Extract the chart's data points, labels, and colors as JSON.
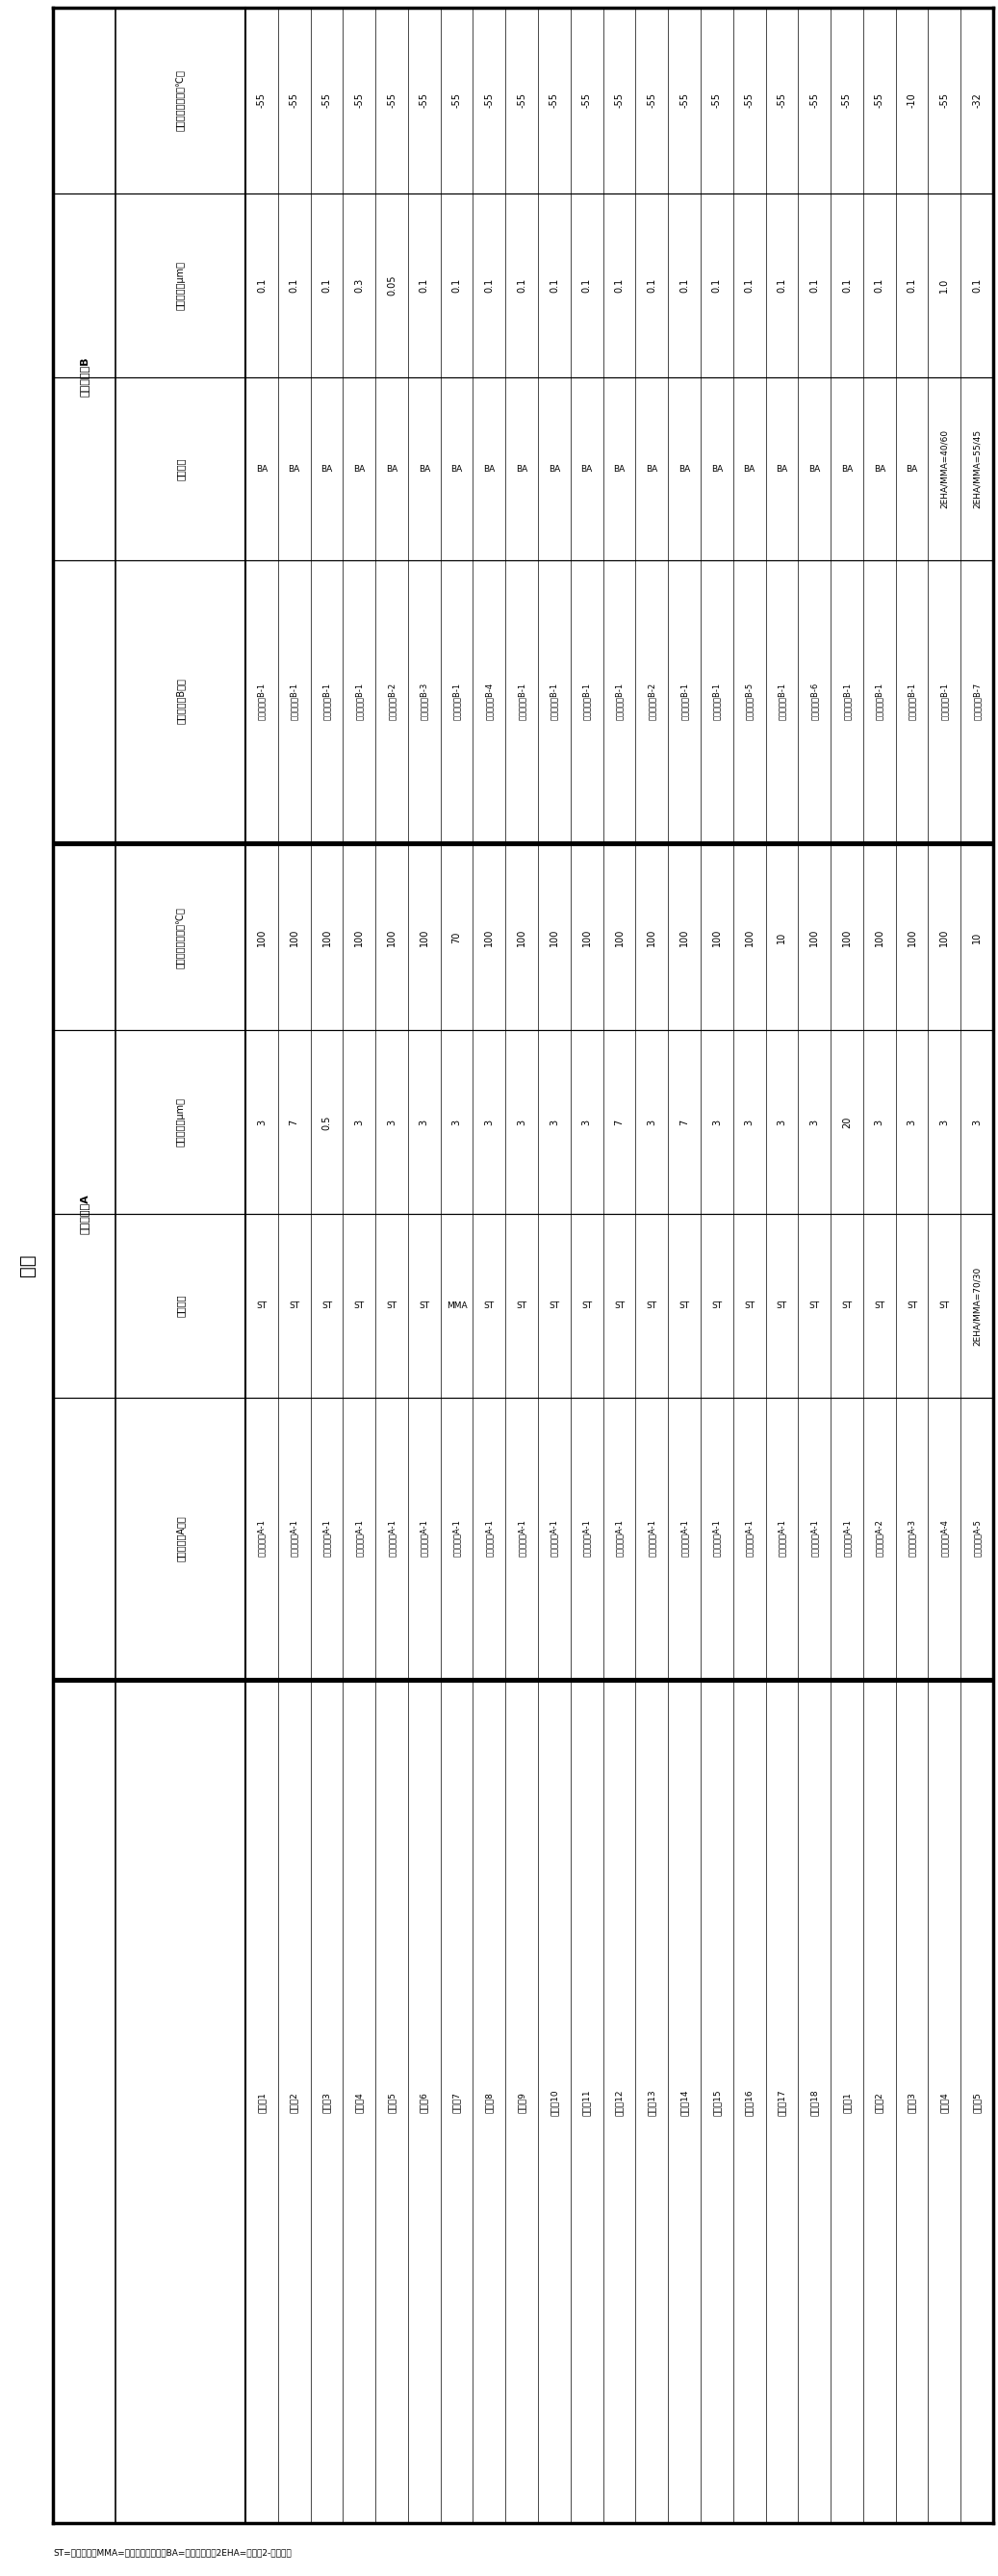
{
  "title": "表１",
  "footnote": "ST=スチレン；MMA=甲基丙烯酸甲酯；BA=丙烯酸丁酯；2EHA=丙烯酸2-乙基己酯",
  "row_labels": [
    "实施例1",
    "实施例2",
    "实施例3",
    "实施例4",
    "实施例5",
    "实施例6",
    "实施例7",
    "实施例8",
    "实施例9",
    "实施例10",
    "实施例11",
    "实施例12",
    "实施例13",
    "实施例14",
    "实施例15",
    "实施例16",
    "实施例17",
    "实施例18",
    "比较例1",
    "比较例2",
    "比较例3",
    "比较例4",
    "比较例5"
  ],
  "particle_A_type": [
    "聚合物粒子A-1",
    "聚合物粒子A-1",
    "聚合物粒子A-1",
    "聚合物粒子A-1",
    "聚合物粒子A-1",
    "聚合物粒子A-1",
    "聚合物粒子A-1",
    "聚合物粒子A-1",
    "聚合物粒子A-1",
    "聚合物粒子A-1",
    "聚合物粒子A-1",
    "聚合物粒子A-1",
    "聚合物粒子A-1",
    "聚合物粒子A-1",
    "聚合物粒子A-1",
    "聚合物粒子A-1",
    "聚合物粒子A-1",
    "聚合物粒子A-1",
    "聚合物粒子A-1",
    "聚合物粒子A-2",
    "聚合物粒子A-3",
    "聚合物粒子A-4",
    "聚合物粒子A-5"
  ],
  "monomer_A": [
    "ST",
    "ST",
    "ST",
    "ST",
    "ST",
    "ST",
    "MMA",
    "ST",
    "ST",
    "ST",
    "ST",
    "ST",
    "ST",
    "ST",
    "ST",
    "ST",
    "ST",
    "ST",
    "ST",
    "ST",
    "ST",
    "ST",
    "2EHA/MMA=70/30"
  ],
  "avg_size_A": [
    "3",
    "7",
    "0.5",
    "3",
    "3",
    "3",
    "3",
    "3",
    "3",
    "3",
    "3",
    "7",
    "3",
    "7",
    "3",
    "3",
    "3",
    "3",
    "20",
    "3",
    "3",
    "3",
    "3"
  ],
  "tg_A": [
    "100",
    "100",
    "100",
    "100",
    "100",
    "100",
    "70",
    "100",
    "100",
    "100",
    "100",
    "100",
    "100",
    "100",
    "100",
    "100",
    "10",
    "100",
    "100",
    "100",
    "100",
    "100",
    "10"
  ],
  "particle_B_type": [
    "聚合物粒子B-1",
    "聚合物粒子B-1",
    "聚合物粒子B-1",
    "聚合物粒子B-1",
    "聚合物粒子B-2",
    "聚合物粒子B-3",
    "聚合物粒子B-1",
    "聚合物粒子B-4",
    "聚合物粒子B-1",
    "聚合物粒子B-1",
    "聚合物粒子B-1",
    "聚合物粒子B-1",
    "聚合物粒子B-2",
    "聚合物粒子B-1",
    "聚合物粒子B-1",
    "聚合物粒子B-5",
    "聚合物粒子B-1",
    "聚合物粒子B-6",
    "聚合物粒子B-1",
    "聚合物粒子B-1",
    "聚合物粒子B-1",
    "聚合物粒子B-1",
    "聚合物粒子B-7"
  ],
  "monomer_B": [
    "BA",
    "BA",
    "BA",
    "BA",
    "BA",
    "BA",
    "BA",
    "BA",
    "BA",
    "BA",
    "BA",
    "BA",
    "BA",
    "BA",
    "BA",
    "BA",
    "BA",
    "BA",
    "BA",
    "BA",
    "BA",
    "2EHA/MMA=40/60",
    "2EHA/MMA=55/45"
  ],
  "avg_size_B": [
    "0.1",
    "0.1",
    "0.1",
    "0.3",
    "0.05",
    "0.1",
    "0.1",
    "0.1",
    "0.1",
    "0.1",
    "0.1",
    "0.1",
    "0.1",
    "0.1",
    "0.1",
    "0.1",
    "0.1",
    "0.1",
    "0.1",
    "0.1",
    "0.1",
    "1.0",
    "0.1"
  ],
  "tg_B": [
    "-55",
    "-55",
    "-55",
    "-55",
    "-55",
    "-55",
    "-55",
    "-55",
    "-55",
    "-55",
    "-55",
    "-55",
    "-55",
    "-55",
    "-55",
    "-55",
    "-55",
    "-55",
    "-55",
    "-55",
    "-10",
    "-55",
    "-32"
  ],
  "col_header_row_label": "",
  "col_header_A_type": "聚合物粒子A种类",
  "col_header_A_monomer": "单体种类",
  "col_header_A_size": "平均粒径（μm）",
  "col_header_A_tg": "玻璃化转变温度（℃）",
  "col_header_B_type": "聚合物粒子B种类",
  "col_header_B_monomer": "单体种类",
  "col_header_B_size": "平均粒径（μm）",
  "col_header_B_tg": "玻璃化转变温度（℃）",
  "group_A_label": "聚合物粒子A",
  "group_B_label": "聚合物粒子B"
}
